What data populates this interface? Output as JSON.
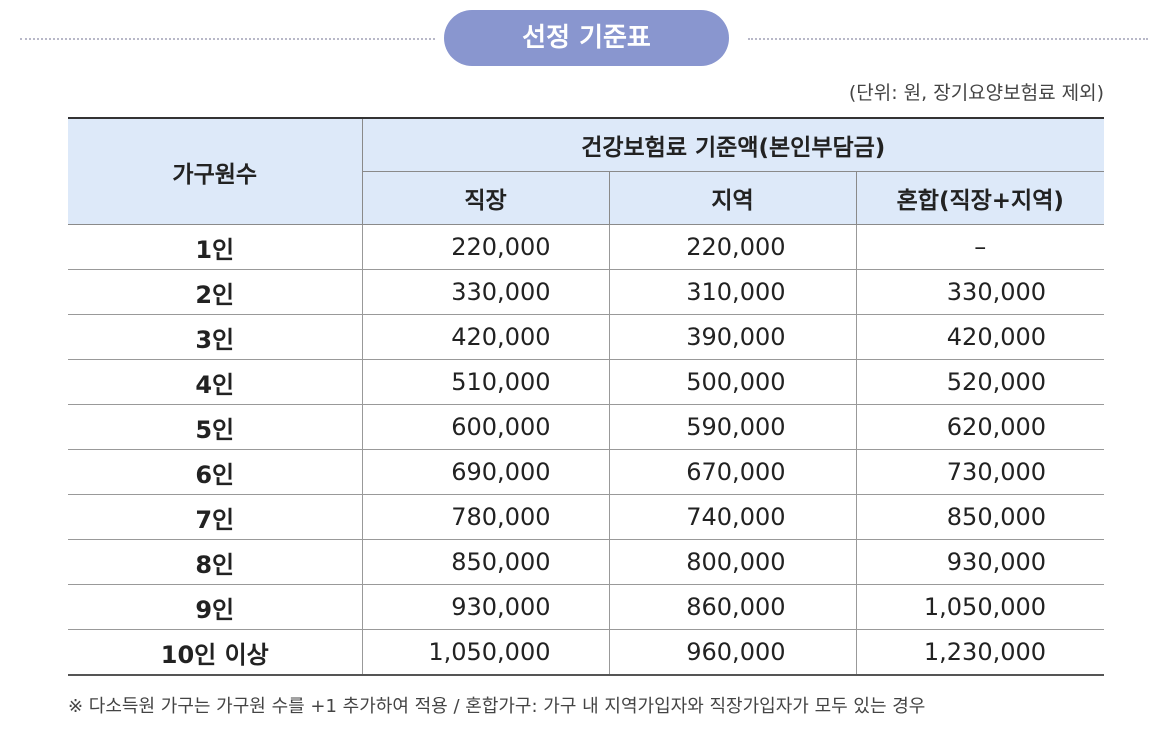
{
  "title": "선정 기준표",
  "unit_note": "(단위: 원, 장기요양보험료 제외)",
  "table": {
    "header_group": "건강보험료 기준액(본인부담금)",
    "columns": [
      "가구원수",
      "직장",
      "지역",
      "혼합(직장+지역)"
    ],
    "rows": [
      [
        "1인",
        "220,000",
        "220,000",
        "–"
      ],
      [
        "2인",
        "330,000",
        "310,000",
        "330,000"
      ],
      [
        "3인",
        "420,000",
        "390,000",
        "420,000"
      ],
      [
        "4인",
        "510,000",
        "500,000",
        "520,000"
      ],
      [
        "5인",
        "600,000",
        "590,000",
        "620,000"
      ],
      [
        "6인",
        "690,000",
        "670,000",
        "730,000"
      ],
      [
        "7인",
        "780,000",
        "740,000",
        "850,000"
      ],
      [
        "8인",
        "850,000",
        "800,000",
        "930,000"
      ],
      [
        "9인",
        "930,000",
        "860,000",
        "1,050,000"
      ],
      [
        "10인 이상",
        "1,050,000",
        "960,000",
        "1,230,000"
      ]
    ]
  },
  "footnote": "※ 다소득원 가구는 가구원 수를 +1 추가하여 적용 / 혼합가구: 가구 내 지역가입자와 직장가입자가 모두 있는 경우"
}
